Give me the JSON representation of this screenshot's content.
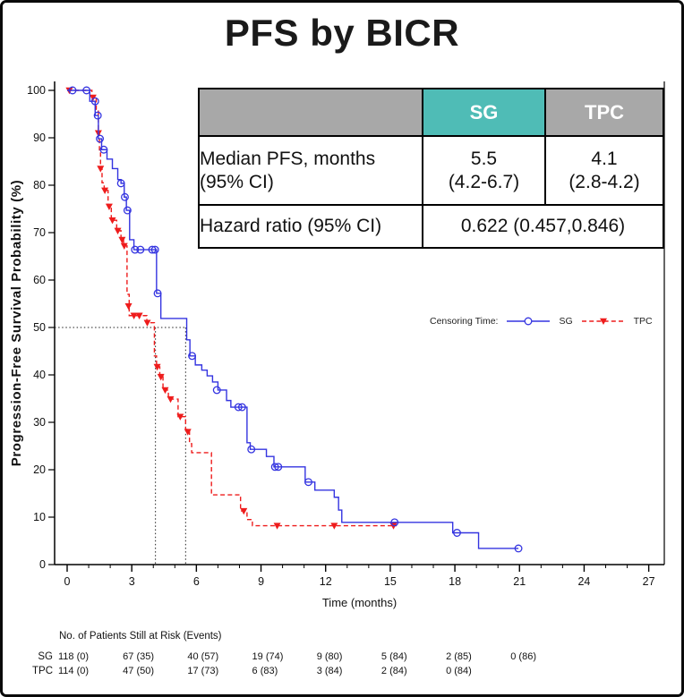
{
  "title": "PFS by BICR",
  "stats_table": {
    "header": {
      "blank": "",
      "sg": "SG",
      "tpc": "TPC"
    },
    "median_row": {
      "label_line1": "Median PFS, months",
      "label_line2": "(95% CI)",
      "sg_line1": "5.5",
      "sg_line2": "(4.2-6.7)",
      "tpc_line1": "4.1",
      "tpc_line2": "(2.8-4.2)"
    },
    "hazard_row": {
      "label": "Hazard ratio (95% CI)",
      "value": "0.622 (0.457,0.846)"
    },
    "colors": {
      "header_bg": "#a8a8a8",
      "sg_header_bg": "#4fbcb6",
      "header_text": "#ffffff"
    }
  },
  "legend": {
    "label": "Censoring Time:",
    "sg_label": "SG",
    "tpc_label": "TPC"
  },
  "chart_data": {
    "type": "line",
    "subtype": "kaplan-meier-step",
    "title": "PFS by BICR",
    "xlabel": "Time (months)",
    "ylabel": "Progression-Free Survival Probability (%)",
    "xlim": [
      0,
      27.7
    ],
    "ylim": [
      0,
      100
    ],
    "xticks": [
      0,
      3,
      6,
      9,
      12,
      15,
      18,
      21,
      24,
      27
    ],
    "x_minor_tick_every": 1,
    "yticks": [
      0,
      10,
      20,
      30,
      40,
      50,
      60,
      70,
      80,
      90,
      100
    ],
    "grid": false,
    "legend_label": "Censoring Time:",
    "reference_lines": {
      "horizontal_pct": 50,
      "horizontal_x_end": 5.5,
      "vertical_months": [
        4.1,
        5.5
      ]
    },
    "series": [
      {
        "name": "TPC",
        "color": "#ee1c1c",
        "line_style": "dashed",
        "marker": "filled-triangle-down",
        "start": [
          0,
          100
        ],
        "end_time": 15.3,
        "steps": [
          [
            1.15,
            98.5
          ],
          [
            1.35,
            96.0
          ],
          [
            1.45,
            91.0
          ],
          [
            1.5,
            87.0
          ],
          [
            1.55,
            83.5
          ],
          [
            1.62,
            80.5
          ],
          [
            1.72,
            78.9
          ],
          [
            1.9,
            75.5
          ],
          [
            2.05,
            72.6
          ],
          [
            2.3,
            70.4
          ],
          [
            2.5,
            68.5
          ],
          [
            2.62,
            67.2
          ],
          [
            2.78,
            57.0
          ],
          [
            2.88,
            52.5
          ],
          [
            3.7,
            51.0
          ],
          [
            4.05,
            44.0
          ],
          [
            4.15,
            41.7
          ],
          [
            4.3,
            39.6
          ],
          [
            4.45,
            36.8
          ],
          [
            4.7,
            34.9
          ],
          [
            5.15,
            31.2
          ],
          [
            5.5,
            28.5
          ],
          [
            5.68,
            25.5
          ],
          [
            5.78,
            23.6
          ],
          [
            6.7,
            14.7
          ],
          [
            8.05,
            11.3
          ],
          [
            8.35,
            9.5
          ],
          [
            8.6,
            8.2
          ]
        ],
        "censor_marks": [
          [
            0.1,
            100
          ],
          [
            1.2,
            98.5
          ],
          [
            1.45,
            91.0
          ],
          [
            1.55,
            83.5
          ],
          [
            1.75,
            78.9
          ],
          [
            1.95,
            75.5
          ],
          [
            2.1,
            72.6
          ],
          [
            2.35,
            70.4
          ],
          [
            2.55,
            68.5
          ],
          [
            2.65,
            67.2
          ],
          [
            2.85,
            54.5
          ],
          [
            3.1,
            52.5
          ],
          [
            3.35,
            52.5
          ],
          [
            3.72,
            51.0
          ],
          [
            4.18,
            41.7
          ],
          [
            4.35,
            39.6
          ],
          [
            4.55,
            36.8
          ],
          [
            4.8,
            34.9
          ],
          [
            5.25,
            31.2
          ],
          [
            5.6,
            28.0
          ],
          [
            8.2,
            11.3
          ],
          [
            9.75,
            8.2
          ],
          [
            12.4,
            8.2
          ],
          [
            15.15,
            8.2
          ]
        ]
      },
      {
        "name": "SG",
        "color": "#3434e0",
        "line_style": "solid",
        "marker": "open-circle",
        "start": [
          0,
          100
        ],
        "end_time": 20.95,
        "steps": [
          [
            1.05,
            97.7
          ],
          [
            1.3,
            94.7
          ],
          [
            1.45,
            89.8
          ],
          [
            1.6,
            87.5
          ],
          [
            1.85,
            85.5
          ],
          [
            2.1,
            83.5
          ],
          [
            2.35,
            81.2
          ],
          [
            2.5,
            80.4
          ],
          [
            2.65,
            77.5
          ],
          [
            2.75,
            74.7
          ],
          [
            2.9,
            68.5
          ],
          [
            3.1,
            66.4
          ],
          [
            4.15,
            57.2
          ],
          [
            4.35,
            51.9
          ],
          [
            5.55,
            47.4
          ],
          [
            5.7,
            44.0
          ],
          [
            5.95,
            42.1
          ],
          [
            6.25,
            41.0
          ],
          [
            6.5,
            39.8
          ],
          [
            6.75,
            38.5
          ],
          [
            7.0,
            36.8
          ],
          [
            7.4,
            34.6
          ],
          [
            7.6,
            33.2
          ],
          [
            8.35,
            25.7
          ],
          [
            8.5,
            24.3
          ],
          [
            9.25,
            22.8
          ],
          [
            9.6,
            20.6
          ],
          [
            11.05,
            17.4
          ],
          [
            11.5,
            15.7
          ],
          [
            12.4,
            14.2
          ],
          [
            12.6,
            11.5
          ],
          [
            12.75,
            8.9
          ],
          [
            17.9,
            6.7
          ],
          [
            19.1,
            3.4
          ]
        ],
        "censor_marks": [
          [
            0.25,
            100
          ],
          [
            0.9,
            100
          ],
          [
            1.3,
            97.7
          ],
          [
            1.42,
            94.7
          ],
          [
            1.52,
            89.8
          ],
          [
            1.7,
            87.5
          ],
          [
            2.5,
            80.4
          ],
          [
            2.68,
            77.5
          ],
          [
            2.8,
            74.7
          ],
          [
            3.15,
            66.4
          ],
          [
            3.4,
            66.4
          ],
          [
            3.95,
            66.4
          ],
          [
            4.08,
            66.4
          ],
          [
            4.2,
            57.2
          ],
          [
            5.8,
            44.0
          ],
          [
            6.95,
            36.8
          ],
          [
            7.95,
            33.2
          ],
          [
            8.12,
            33.2
          ],
          [
            8.55,
            24.3
          ],
          [
            9.65,
            20.6
          ],
          [
            9.8,
            20.6
          ],
          [
            11.2,
            17.4
          ],
          [
            15.2,
            8.9
          ],
          [
            18.1,
            6.7
          ],
          [
            20.95,
            3.4
          ]
        ]
      }
    ]
  },
  "risk_table": {
    "title": "No. of Patients Still at Risk (Events)",
    "times": [
      0,
      3,
      6,
      9,
      12,
      15,
      18,
      21
    ],
    "rows": [
      {
        "label": "SG",
        "values": [
          "118 (0)",
          "67 (35)",
          "40 (57)",
          "19 (74)",
          "9 (80)",
          "5 (84)",
          "2 (85)",
          "0 (86)"
        ]
      },
      {
        "label": "TPC",
        "values": [
          "114 (0)",
          "47 (50)",
          "17 (73)",
          "6 (83)",
          "3 (84)",
          "2 (84)",
          "0 (84)"
        ]
      }
    ]
  }
}
